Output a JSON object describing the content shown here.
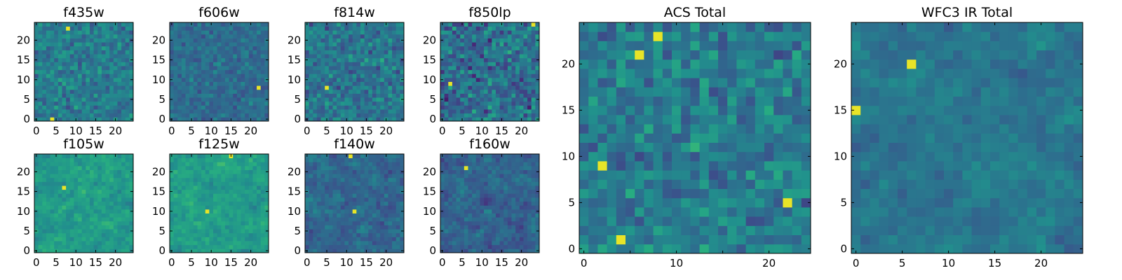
{
  "figure": {
    "description_values_note": "pixel values are random-like noise maps; values stored are estimated normalized intensities"
  },
  "chart_data": [
    {
      "type": "heatmap",
      "title": "f435w",
      "xlim": [
        0,
        24
      ],
      "ylim": [
        0,
        24
      ],
      "xticks": [
        0,
        5,
        10,
        15,
        20
      ],
      "yticks": [
        0,
        5,
        10,
        15,
        20
      ],
      "seed": 435,
      "bias": 0.42,
      "spread": 0.14,
      "smooth": 0,
      "colormap": "viridis",
      "hot_spots": [
        [
          4,
          0
        ],
        [
          8,
          23
        ]
      ]
    },
    {
      "type": "heatmap",
      "title": "f606w",
      "xlim": [
        0,
        24
      ],
      "ylim": [
        0,
        24
      ],
      "xticks": [
        0,
        5,
        10,
        15,
        20
      ],
      "yticks": [
        0,
        5,
        10,
        15,
        20
      ],
      "seed": 606,
      "bias": 0.36,
      "spread": 0.1,
      "smooth": 0,
      "colormap": "viridis",
      "hot_spots": [
        [
          22,
          8
        ]
      ]
    },
    {
      "type": "heatmap",
      "title": "f814w",
      "xlim": [
        0,
        24
      ],
      "ylim": [
        0,
        24
      ],
      "xticks": [
        0,
        5,
        10,
        15,
        20
      ],
      "yticks": [
        0,
        5,
        10,
        15,
        20
      ],
      "seed": 814,
      "bias": 0.4,
      "spread": 0.16,
      "smooth": 0,
      "colormap": "viridis",
      "hot_spots": [
        [
          5,
          8
        ]
      ]
    },
    {
      "type": "heatmap",
      "title": "f850lp",
      "xlim": [
        0,
        24
      ],
      "ylim": [
        0,
        24
      ],
      "xticks": [
        0,
        5,
        10,
        15,
        20
      ],
      "yticks": [
        0,
        5,
        10,
        15,
        20
      ],
      "seed": 850,
      "bias": 0.36,
      "spread": 0.2,
      "smooth": 0,
      "colormap": "viridis",
      "hot_spots": [
        [
          23,
          24
        ],
        [
          2,
          9
        ]
      ]
    },
    {
      "type": "heatmap",
      "title": "f105w",
      "xlim": [
        0,
        24
      ],
      "ylim": [
        0,
        24
      ],
      "xticks": [
        0,
        5,
        10,
        15,
        20
      ],
      "yticks": [
        0,
        5,
        10,
        15,
        20
      ],
      "seed": 105,
      "bias": 0.55,
      "spread": 0.16,
      "smooth": 1,
      "colormap": "viridis",
      "hot_spots": [
        [
          7,
          16
        ]
      ]
    },
    {
      "type": "heatmap",
      "title": "f125w",
      "xlim": [
        0,
        24
      ],
      "ylim": [
        0,
        24
      ],
      "xticks": [
        0,
        5,
        10,
        15,
        20
      ],
      "yticks": [
        0,
        5,
        10,
        15,
        20
      ],
      "seed": 125,
      "bias": 0.56,
      "spread": 0.16,
      "smooth": 1,
      "colormap": "viridis",
      "hot_spots": [
        [
          15,
          24
        ],
        [
          9,
          10
        ]
      ]
    },
    {
      "type": "heatmap",
      "title": "f140w",
      "xlim": [
        0,
        24
      ],
      "ylim": [
        0,
        24
      ],
      "xticks": [
        0,
        5,
        10,
        15,
        20
      ],
      "yticks": [
        0,
        5,
        10,
        15,
        20
      ],
      "seed": 140,
      "bias": 0.34,
      "spread": 0.18,
      "smooth": 1,
      "colormap": "viridis",
      "hot_spots": [
        [
          12,
          10
        ],
        [
          11,
          24
        ]
      ]
    },
    {
      "type": "heatmap",
      "title": "f160w",
      "xlim": [
        0,
        24
      ],
      "ylim": [
        0,
        24
      ],
      "xticks": [
        0,
        5,
        10,
        15,
        20
      ],
      "yticks": [
        0,
        5,
        10,
        15,
        20
      ],
      "seed": 160,
      "bias": 0.32,
      "spread": 0.18,
      "smooth": 1,
      "colormap": "viridis",
      "hot_spots": [
        [
          6,
          21
        ]
      ]
    },
    {
      "type": "heatmap",
      "title": "ACS Total",
      "xlim": [
        0,
        24
      ],
      "ylim": [
        0,
        24
      ],
      "xticks": [
        0,
        10,
        20
      ],
      "xticks_minor": [
        5,
        15
      ],
      "yticks": [
        0,
        5,
        10,
        15,
        20
      ],
      "seed": 999,
      "bias": 0.42,
      "spread": 0.16,
      "smooth": 0,
      "colormap": "viridis",
      "hot_spots": [
        [
          6,
          21
        ],
        [
          4,
          1
        ],
        [
          8,
          23
        ],
        [
          2,
          9
        ],
        [
          22,
          5
        ]
      ]
    },
    {
      "type": "heatmap",
      "title": "WFC3 IR Total",
      "xlim": [
        0,
        24
      ],
      "ylim": [
        0,
        24
      ],
      "xticks": [
        0,
        5,
        10,
        15,
        20
      ],
      "yticks": [
        0,
        5,
        10,
        15,
        20
      ],
      "seed": 777,
      "bias": 0.4,
      "spread": 0.14,
      "smooth": 1,
      "colormap": "viridis",
      "hot_spots": [
        [
          6,
          20
        ],
        [
          0,
          15
        ]
      ]
    }
  ],
  "labels": {
    "t0": "f435w",
    "t1": "f606w",
    "t2": "f814w",
    "t3": "f850lp",
    "t4": "f105w",
    "t5": "f125w",
    "t6": "f140w",
    "t7": "f160w",
    "t8": "ACS Total",
    "t9": "WFC3 IR Total"
  }
}
